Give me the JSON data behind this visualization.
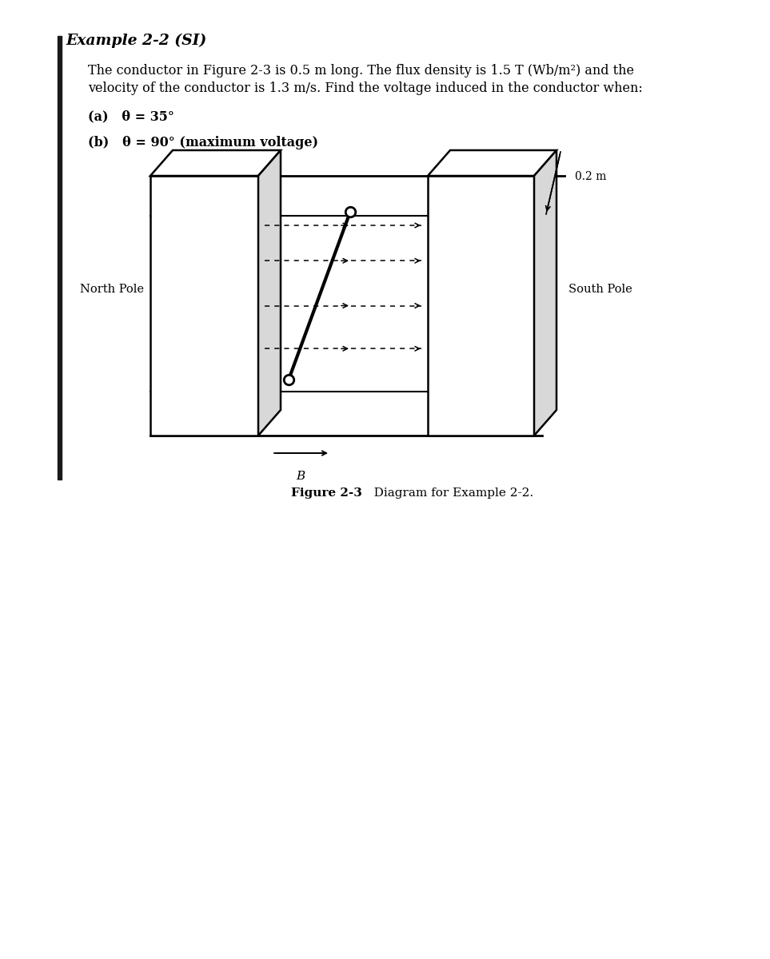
{
  "title": "Example 2-2 (SI)",
  "bg_color": "#ffffff",
  "text_color": "#000000",
  "body_text_line1": "The conductor in Figure 2-3 is 0.5 m long. The flux density is 1.5 T (Wb/m²) and the",
  "body_text_line2": "velocity of the conductor is 1.3 m/s. Find the voltage induced in the conductor when:",
  "item_a": "(a)   θ = 35°",
  "item_b": "(b)   θ = 90° (maximum voltage)",
  "fig_caption_bold": "Figure 2-3",
  "fig_caption_normal": "   Diagram for Example 2-2.",
  "north_pole_label": "North Pole",
  "south_pole_label": "South Pole",
  "dim_label": "0.2 m",
  "b_label": "B",
  "page_color": "#ffffff",
  "line_color": "#000000",
  "left_bar_color": "#1a1a1a"
}
